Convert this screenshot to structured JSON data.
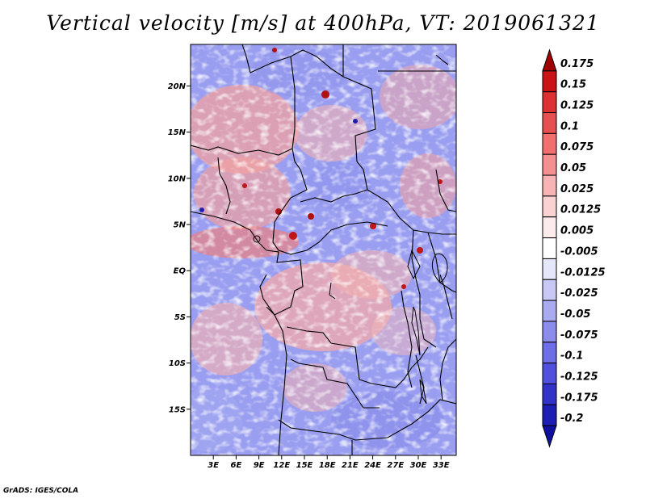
{
  "title": "Vertical velocity [m/s] at 400hPa, VT: 2019061321",
  "footer": "GrADS: IGES/COLA",
  "map": {
    "lat_labels": [
      "20N",
      "15N",
      "10N",
      "5N",
      "EQ",
      "5S",
      "10S",
      "15S"
    ],
    "lat_values": [
      20,
      15,
      10,
      5,
      0,
      -5,
      -10,
      -15
    ],
    "lon_labels": [
      "3E",
      "6E",
      "9E",
      "12E",
      "15E",
      "18E",
      "21E",
      "24E",
      "27E",
      "30E",
      "33E"
    ],
    "lon_values": [
      3,
      6,
      9,
      12,
      15,
      18,
      21,
      24,
      27,
      30,
      33
    ],
    "lon_range": [
      0,
      35
    ],
    "lat_range": [
      -20,
      24.5
    ]
  },
  "colorbar": {
    "labels": [
      "0.175",
      "0.15",
      "0.125",
      "0.1",
      "0.075",
      "0.05",
      "0.025",
      "0.0125",
      "0.005",
      "-0.005",
      "-0.0125",
      "-0.025",
      "-0.05",
      "-0.075",
      "-0.1",
      "-0.125",
      "-0.175",
      "-0.2"
    ],
    "colors": [
      "#a00000",
      "#c81414",
      "#dc3232",
      "#e65050",
      "#f07070",
      "#f59090",
      "#f8b4b4",
      "#fad2d2",
      "#fdebeb",
      "#ffffff",
      "#e6e6fa",
      "#c8c8f5",
      "#aaaaf0",
      "#8c8cec",
      "#6e6ee6",
      "#5050dc",
      "#3232c8",
      "#1e1eb4",
      "#1010a0"
    ]
  }
}
